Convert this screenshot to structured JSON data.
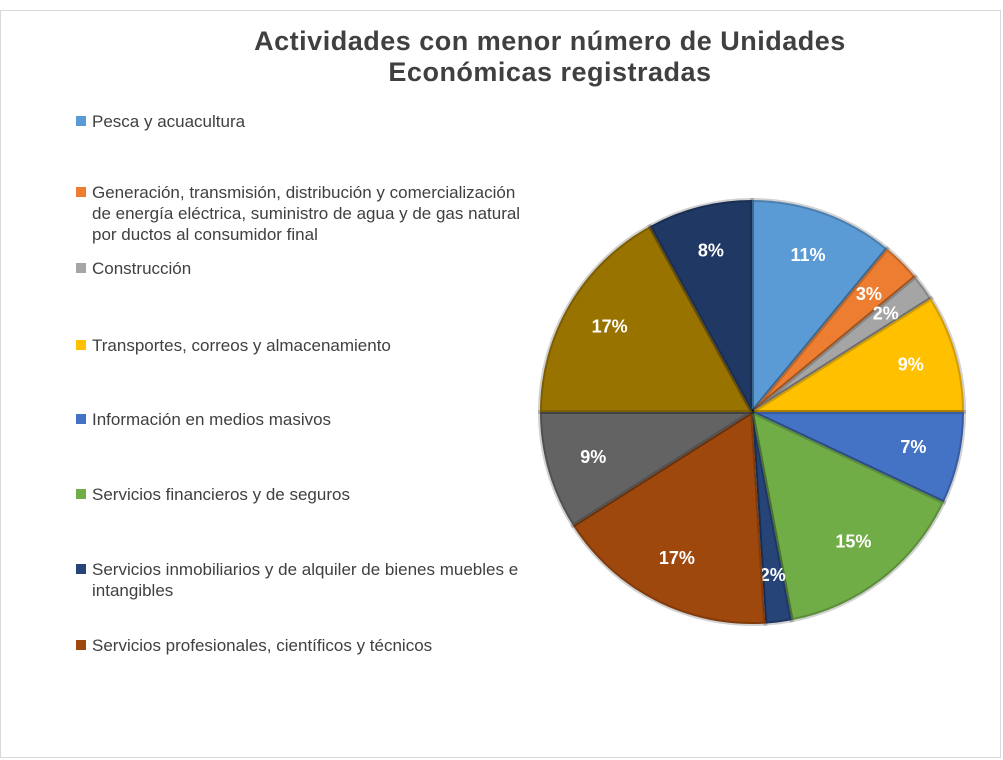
{
  "chart_data": {
    "type": "pie",
    "title": "Actividades con menor número de Unidades Económicas registradas",
    "categories": [
      "Pesca y acuacultura",
      "Generación, transmisión, distribución y comercialización de energía eléctrica, suministro de agua y de gas natural por ductos al consumidor final",
      "Construcción",
      "Transportes, correos y almacenamiento",
      "Información en medios masivos",
      "Servicios financieros y de seguros",
      "Servicios inmobiliarios y de alquiler de bienes muebles e intangibles",
      "Servicios profesionales, científicos y técnicos",
      null,
      null,
      null
    ],
    "values": [
      11,
      3,
      2,
      9,
      7,
      15,
      2,
      17,
      9,
      17,
      8
    ],
    "value_labels": [
      "11%",
      "3%",
      "2%",
      "9%",
      "7%",
      "15%",
      "2%",
      "17%",
      "9%",
      "17%",
      "8%"
    ],
    "colors": [
      "#5b9bd5",
      "#ed7d31",
      "#a5a5a5",
      "#ffc000",
      "#4472c4",
      "#70ad47",
      "#264478",
      "#9e480e",
      "#636363",
      "#997300",
      "#203864"
    ],
    "legend": "left"
  }
}
